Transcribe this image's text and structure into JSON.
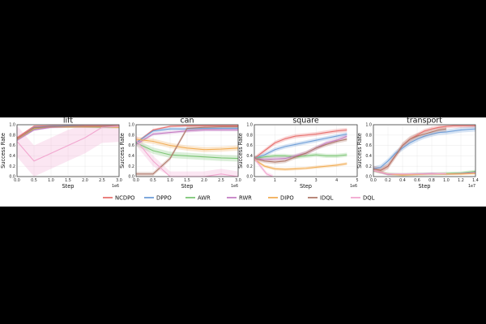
{
  "chart_data": [
    {
      "type": "line",
      "title": "lift",
      "xlabel": "Step",
      "ylabel": "Success Rate",
      "xlim": [
        0,
        3.0
      ],
      "ylim": [
        0,
        1.0
      ],
      "x_ticks": [
        "0.0",
        "0.5",
        "1.0",
        "1.5",
        "2.0",
        "2.5",
        "3.0"
      ],
      "y_ticks": [
        "0.0",
        "0.2",
        "0.4",
        "0.6",
        "0.8",
        "1.0"
      ],
      "x_offset_label": "1e6",
      "series": [
        {
          "name": "NCDPO",
          "x": [
            0,
            0.5,
            1.0,
            1.5,
            2.0,
            2.5,
            3.0
          ],
          "y": [
            0.75,
            0.97,
            0.98,
            0.98,
            0.98,
            0.98,
            0.98
          ],
          "band": 0.02
        },
        {
          "name": "DPPO",
          "x": [
            0,
            0.5,
            1.0,
            1.5,
            2.0,
            2.5,
            3.0
          ],
          "y": [
            0.72,
            0.95,
            0.97,
            0.98,
            0.97,
            0.97,
            0.97
          ],
          "band": 0.02
        },
        {
          "name": "AWR",
          "x": [
            0,
            0.5,
            1.0,
            1.5,
            2.0,
            2.5,
            3.0
          ],
          "y": [
            0.7,
            0.92,
            0.96,
            0.96,
            0.96,
            0.95,
            0.95
          ],
          "band": 0.02
        },
        {
          "name": "RWR",
          "x": [
            0,
            0.5,
            1.0,
            1.5,
            2.0,
            2.5,
            3.0
          ],
          "y": [
            0.7,
            0.9,
            0.95,
            0.96,
            0.96,
            0.96,
            0.96
          ],
          "band": 0.02
        },
        {
          "name": "DIPO",
          "x": [
            0,
            0.5,
            1.0,
            1.5,
            2.0,
            2.5,
            3.0
          ],
          "y": [
            0.72,
            0.93,
            0.96,
            0.96,
            0.96,
            0.96,
            0.95
          ],
          "band": 0.02
        },
        {
          "name": "IDQL",
          "x": [
            0,
            0.5,
            1.0,
            1.5,
            2.0,
            2.5,
            3.0
          ],
          "y": [
            0.73,
            0.94,
            0.96,
            0.97,
            0.97,
            0.97,
            0.97
          ],
          "band": 0.02
        },
        {
          "name": "DQL",
          "x": [
            0,
            0.5,
            1.0,
            1.5,
            2.0,
            2.5,
            3.0
          ],
          "y": [
            0.68,
            0.3,
            0.45,
            0.6,
            0.75,
            0.95,
            0.97
          ],
          "band": 0.3
        }
      ]
    },
    {
      "type": "line",
      "title": "can",
      "xlabel": "Step",
      "ylabel": "Success Rate",
      "xlim": [
        0,
        3.0
      ],
      "ylim": [
        0,
        1.0
      ],
      "x_ticks": [
        "0.0",
        "0.5",
        "1.0",
        "1.5",
        "2.0",
        "2.5",
        "3.0"
      ],
      "y_ticks": [
        "0.0",
        "0.2",
        "0.4",
        "0.6",
        "0.8",
        "1.0"
      ],
      "x_offset_label": "1e6",
      "series": [
        {
          "name": "NCDPO",
          "x": [
            0,
            0.5,
            1.0,
            1.5,
            2.0,
            2.5,
            3.0
          ],
          "y": [
            0.65,
            0.9,
            0.97,
            0.98,
            0.98,
            0.98,
            0.98
          ],
          "band": 0.02
        },
        {
          "name": "DPPO",
          "x": [
            0,
            0.5,
            1.0,
            1.5,
            2.0,
            2.5,
            3.0
          ],
          "y": [
            0.65,
            0.88,
            0.92,
            0.92,
            0.93,
            0.93,
            0.93
          ],
          "band": 0.03
        },
        {
          "name": "AWR",
          "x": [
            0,
            0.5,
            1.0,
            1.5,
            2.0,
            2.5,
            3.0
          ],
          "y": [
            0.65,
            0.5,
            0.42,
            0.4,
            0.38,
            0.36,
            0.35
          ],
          "band": 0.06
        },
        {
          "name": "RWR",
          "x": [
            0,
            0.5,
            1.0,
            1.5,
            2.0,
            2.5,
            3.0
          ],
          "y": [
            0.62,
            0.82,
            0.85,
            0.88,
            0.9,
            0.9,
            0.9
          ],
          "band": 0.03
        },
        {
          "name": "DIPO",
          "x": [
            0,
            0.5,
            1.0,
            1.5,
            2.0,
            2.5,
            3.0
          ],
          "y": [
            0.72,
            0.68,
            0.6,
            0.55,
            0.52,
            0.53,
            0.55
          ],
          "band": 0.05
        },
        {
          "name": "IDQL",
          "x": [
            0,
            0.5,
            1.0,
            1.5,
            2.0,
            2.5,
            3.0
          ],
          "y": [
            0.05,
            0.05,
            0.35,
            0.93,
            0.95,
            0.96,
            0.96
          ],
          "band": 0.04
        },
        {
          "name": "DQL",
          "x": [
            0,
            0.5,
            1.0,
            1.5,
            2.0,
            2.5,
            3.0
          ],
          "y": [
            0.7,
            0.3,
            0.0,
            0.0,
            0.0,
            0.05,
            0.0
          ],
          "band": 0.1
        }
      ]
    },
    {
      "type": "line",
      "title": "square",
      "xlabel": "Step",
      "ylabel": "Success Rate",
      "xlim": [
        0,
        5
      ],
      "ylim": [
        0,
        1.0
      ],
      "x_ticks": [
        "0",
        "1",
        "2",
        "3",
        "4",
        "5"
      ],
      "y_ticks": [
        "0.0",
        "0.2",
        "0.4",
        "0.6",
        "0.8",
        "1.0"
      ],
      "x_offset_label": "1e6",
      "series": [
        {
          "name": "NCDPO",
          "x": [
            0,
            0.5,
            1,
            1.5,
            2,
            2.5,
            3,
            3.5,
            4,
            4.5
          ],
          "y": [
            0.35,
            0.5,
            0.65,
            0.73,
            0.78,
            0.8,
            0.82,
            0.85,
            0.88,
            0.9
          ],
          "band": 0.04
        },
        {
          "name": "DPPO",
          "x": [
            0,
            0.5,
            1,
            1.5,
            2,
            2.5,
            3,
            3.5,
            4,
            4.5
          ],
          "y": [
            0.35,
            0.42,
            0.52,
            0.58,
            0.62,
            0.66,
            0.7,
            0.74,
            0.78,
            0.82
          ],
          "band": 0.04
        },
        {
          "name": "AWR",
          "x": [
            0,
            0.5,
            1,
            1.5,
            2,
            2.5,
            3,
            3.5,
            4,
            4.5
          ],
          "y": [
            0.35,
            0.38,
            0.4,
            0.4,
            0.38,
            0.4,
            0.42,
            0.4,
            0.4,
            0.42
          ],
          "band": 0.04
        },
        {
          "name": "RWR",
          "x": [
            0,
            0.5,
            1,
            1.5,
            2,
            2.5,
            3,
            3.5,
            4,
            4.5
          ],
          "y": [
            0.35,
            0.33,
            0.34,
            0.35,
            0.4,
            0.45,
            0.55,
            0.65,
            0.7,
            0.78
          ],
          "band": 0.04
        },
        {
          "name": "DIPO",
          "x": [
            0,
            0.5,
            1,
            1.5,
            2,
            2.5,
            3,
            3.5,
            4,
            4.5
          ],
          "y": [
            0.33,
            0.2,
            0.15,
            0.14,
            0.15,
            0.16,
            0.18,
            0.2,
            0.22,
            0.25
          ],
          "band": 0.03
        },
        {
          "name": "IDQL",
          "x": [
            0,
            0.5,
            1,
            1.5,
            2,
            2.5,
            3,
            3.5,
            4,
            4.5
          ],
          "y": [
            0.35,
            0.3,
            0.28,
            0.3,
            0.38,
            0.45,
            0.55,
            0.62,
            0.68,
            0.72
          ],
          "band": 0.04
        },
        {
          "name": "DQL",
          "x": [
            0,
            0.3,
            0.6,
            0.9
          ],
          "y": [
            0.35,
            0.2,
            0.05,
            0.0
          ],
          "band": 0.04
        }
      ]
    },
    {
      "type": "line",
      "title": "transport",
      "xlabel": "Step",
      "ylabel": "Success Rate",
      "xlim": [
        0,
        1.4
      ],
      "ylim": [
        0,
        1.0
      ],
      "x_ticks": [
        "0.0",
        "0.2",
        "0.4",
        "0.6",
        "0.8",
        "1.0",
        "1.2",
        "1.4"
      ],
      "y_ticks": [
        "0.0",
        "0.2",
        "0.4",
        "0.6",
        "0.8",
        "1.0"
      ],
      "x_offset_label": "1e7",
      "series": [
        {
          "name": "NCDPO",
          "x": [
            0,
            0.1,
            0.2,
            0.3,
            0.4,
            0.5,
            0.6,
            0.7,
            0.8,
            0.9,
            1.0,
            1.1,
            1.2,
            1.3,
            1.4
          ],
          "y": [
            0.15,
            0.12,
            0.2,
            0.4,
            0.6,
            0.72,
            0.8,
            0.88,
            0.92,
            0.95,
            0.97,
            0.98,
            0.98,
            0.98,
            0.98
          ],
          "band": 0.04
        },
        {
          "name": "DPPO",
          "x": [
            0,
            0.1,
            0.2,
            0.3,
            0.4,
            0.5,
            0.6,
            0.7,
            0.8,
            0.9,
            1.0,
            1.1,
            1.2,
            1.3,
            1.4
          ],
          "y": [
            0.15,
            0.18,
            0.3,
            0.45,
            0.55,
            0.65,
            0.72,
            0.78,
            0.82,
            0.85,
            0.86,
            0.88,
            0.9,
            0.91,
            0.92
          ],
          "band": 0.05
        },
        {
          "name": "AWR",
          "x": [
            0,
            0.2,
            0.4,
            0.6,
            0.8,
            1.0,
            1.2,
            1.4
          ],
          "y": [
            0.12,
            0.05,
            0.04,
            0.05,
            0.05,
            0.06,
            0.07,
            0.1
          ],
          "band": 0.03
        },
        {
          "name": "RWR",
          "x": [
            0,
            0.2,
            0.4,
            0.6,
            0.8,
            1.0,
            1.2,
            1.4
          ],
          "y": [
            0.12,
            0.04,
            0.04,
            0.05,
            0.06,
            0.05,
            0.06,
            0.08
          ],
          "band": 0.02
        },
        {
          "name": "DIPO",
          "x": [
            0,
            0.2,
            0.4,
            0.6,
            0.8,
            1.0,
            1.2,
            1.4
          ],
          "y": [
            0.12,
            0.05,
            0.03,
            0.04,
            0.05,
            0.05,
            0.05,
            0.06
          ],
          "band": 0.02
        },
        {
          "name": "IDQL",
          "x": [
            0,
            0.1,
            0.2,
            0.3,
            0.4,
            0.5,
            0.6,
            0.7,
            0.8,
            0.9,
            1.0
          ],
          "y": [
            0.15,
            0.12,
            0.2,
            0.4,
            0.6,
            0.72,
            0.78,
            0.82,
            0.86,
            0.9,
            0.92
          ],
          "band": 0.06
        },
        {
          "name": "DQL",
          "x": [
            0,
            0.2,
            0.4,
            0.6,
            0.8,
            1.0
          ],
          "y": [
            0.12,
            0.05,
            0.05,
            0.05,
            0.05,
            0.06
          ],
          "band": 0.02
        }
      ]
    }
  ],
  "legend": {
    "placement": "bottom",
    "items": [
      {
        "name": "NCDPO",
        "color": "#e8716f"
      },
      {
        "name": "DPPO",
        "color": "#6f9fd8"
      },
      {
        "name": "AWR",
        "color": "#7cc675"
      },
      {
        "name": "RWR",
        "color": "#c57fc4"
      },
      {
        "name": "DIPO",
        "color": "#f2ae57"
      },
      {
        "name": "IDQL",
        "color": "#b07a6b"
      },
      {
        "name": "DQL",
        "color": "#f2a6cf"
      }
    ]
  }
}
